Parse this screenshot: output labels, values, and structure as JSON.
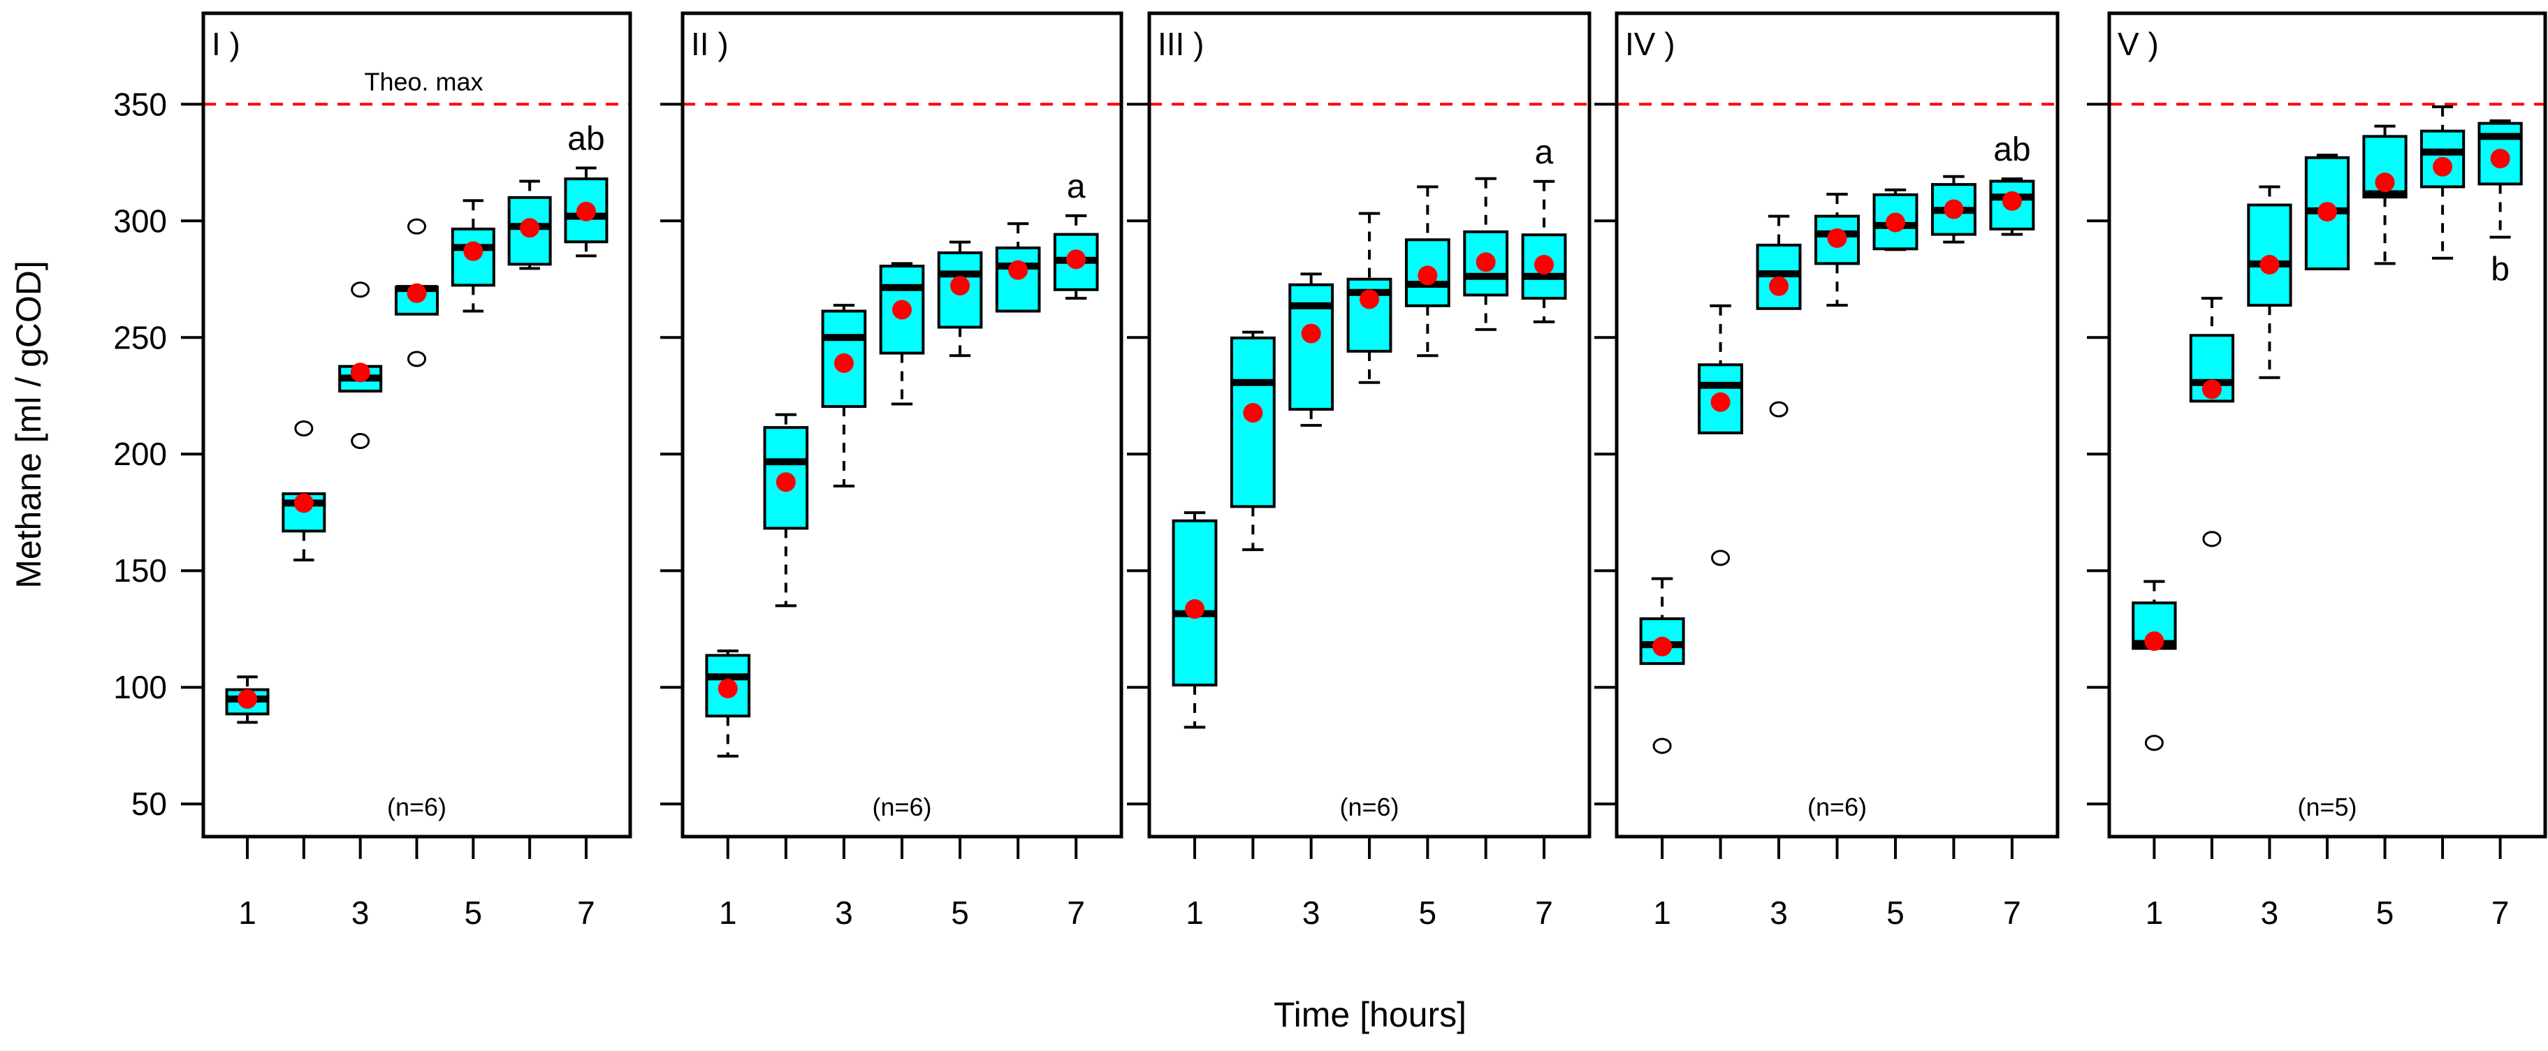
{
  "chart_data": {
    "type": "boxplot",
    "ylabel": "Methane [ml / gCOD]",
    "xlabel": "Time [hours]",
    "ylim": [
      36,
      389
    ],
    "yticks": [
      50,
      100,
      150,
      200,
      250,
      300,
      350
    ],
    "xticks": [
      1,
      2,
      3,
      4,
      5,
      6,
      7
    ],
    "xtick_labels": [
      "1",
      "",
      "3",
      "",
      "5",
      "",
      "7"
    ],
    "reference_line": {
      "value": 350,
      "label": "Theo. max",
      "color": "#FF0000",
      "style": "dashed"
    },
    "colors": {
      "box_fill": "#00FFFF",
      "mean_marker": "#FF0000",
      "outline": "#000000"
    },
    "stats_order": [
      "whisker_low",
      "q1",
      "median",
      "q3",
      "whisker_high"
    ],
    "panels": [
      {
        "label": "I )",
        "n_label": "(n=6)",
        "show_ref_label": true,
        "letter": {
          "text": "ab",
          "x": 7,
          "position": "above"
        },
        "boxes": [
          {
            "x": 1,
            "stats": [
              85,
              88.6,
              95,
              99,
              104.5
            ],
            "mean": 95,
            "outliers": []
          },
          {
            "x": 2,
            "stats": [
              154.6,
              167,
              179,
              183,
              183
            ],
            "mean": 179,
            "outliers": [
              211
            ]
          },
          {
            "x": 3,
            "stats": [
              227,
              227,
              232.6,
              237.6,
              237.6
            ],
            "mean": 235,
            "outliers": [
              270.5,
              205.6
            ]
          },
          {
            "x": 4,
            "stats": [
              260,
              260,
              271,
              271.6,
              271.6
            ],
            "mean": 269,
            "outliers": [
              297.6,
              240.8
            ]
          },
          {
            "x": 5,
            "stats": [
              261.3,
              272.4,
              288.6,
              296.5,
              308.7
            ],
            "mean": 287,
            "outliers": []
          },
          {
            "x": 6,
            "stats": [
              279.6,
              281.4,
              297.6,
              310,
              317
            ],
            "mean": 297,
            "outliers": []
          },
          {
            "x": 7,
            "stats": [
              285,
              291,
              302,
              318,
              322.7
            ],
            "mean": 304,
            "outliers": []
          }
        ]
      },
      {
        "label": "II )",
        "n_label": "(n=6)",
        "show_ref_label": false,
        "letter": {
          "text": "a",
          "x": 7,
          "position": "above"
        },
        "boxes": [
          {
            "x": 1,
            "stats": [
              70.5,
              87.7,
              104.5,
              113.7,
              115.6
            ],
            "mean": 99.5,
            "outliers": []
          },
          {
            "x": 2,
            "stats": [
              135,
              168.2,
              196.7,
              211.4,
              216.9
            ],
            "mean": 188,
            "outliers": []
          },
          {
            "x": 3,
            "stats": [
              186.3,
              220.4,
              250,
              261.3,
              263.8
            ],
            "mean": 239,
            "outliers": []
          },
          {
            "x": 4,
            "stats": [
              221.5,
              243.3,
              271.4,
              280.6,
              281.7
            ],
            "mean": 261.9,
            "outliers": []
          },
          {
            "x": 5,
            "stats": [
              242.2,
              254.4,
              277.2,
              286.3,
              290.9
            ],
            "mean": 272.2,
            "outliers": []
          },
          {
            "x": 6,
            "stats": [
              261.3,
              261.3,
              280.6,
              288.4,
              298.8
            ],
            "mean": 278.9,
            "outliers": []
          },
          {
            "x": 7,
            "stats": [
              266.8,
              270.5,
              283.1,
              294.2,
              302.2
            ],
            "mean": 283.5,
            "outliers": []
          }
        ]
      },
      {
        "label": "III )",
        "n_label": "(n=6)",
        "show_ref_label": false,
        "letter": {
          "text": "a",
          "x": 7,
          "position": "above"
        },
        "boxes": [
          {
            "x": 1,
            "stats": [
              82.9,
              101,
              131.6,
              171.4,
              174.9
            ],
            "mean": 133.6,
            "outliers": []
          },
          {
            "x": 2,
            "stats": [
              159,
              177.5,
              230.7,
              249.8,
              252.3
            ],
            "mean": 217.7,
            "outliers": []
          },
          {
            "x": 3,
            "stats": [
              212.3,
              219.2,
              263.6,
              272.6,
              277.2
            ],
            "mean": 251.7,
            "outliers": []
          },
          {
            "x": 4,
            "stats": [
              230.7,
              244.1,
              269.3,
              275,
              303.2
            ],
            "mean": 266.4,
            "outliers": []
          },
          {
            "x": 5,
            "stats": [
              242.2,
              263.6,
              272.8,
              291.9,
              314.6
            ],
            "mean": 276.6,
            "outliers": []
          },
          {
            "x": 6,
            "stats": [
              253.4,
              268.2,
              276.2,
              295.3,
              318.1
            ],
            "mean": 282.3,
            "outliers": []
          },
          {
            "x": 7,
            "stats": [
              256.7,
              266.8,
              276.2,
              294,
              316.9
            ],
            "mean": 281.2,
            "outliers": []
          }
        ]
      },
      {
        "label": "IV )",
        "n_label": "(n=6)",
        "show_ref_label": false,
        "letter": {
          "text": "ab",
          "x": 7,
          "position": "above"
        },
        "boxes": [
          {
            "x": 1,
            "stats": [
              110.2,
              110.2,
              118.3,
              129.4,
              146.6
            ],
            "mean": 117.5,
            "outliers": [
              74.9
            ]
          },
          {
            "x": 2,
            "stats": [
              209.1,
              209.1,
              229.5,
              238.3,
              263.6
            ],
            "mean": 222.3,
            "outliers": [
              155.5
            ]
          },
          {
            "x": 3,
            "stats": [
              262.4,
              262.4,
              277.3,
              289.6,
              302
            ],
            "mean": 272,
            "outliers": [
              219.2
            ]
          },
          {
            "x": 4,
            "stats": [
              263.8,
              281.7,
              294.4,
              302,
              311.4
            ],
            "mean": 292.6,
            "outliers": []
          },
          {
            "x": 5,
            "stats": [
              287.7,
              288,
              298,
              311.2,
              313.3
            ],
            "mean": 299.3,
            "outliers": []
          },
          {
            "x": 6,
            "stats": [
              290.9,
              294.2,
              304.5,
              315.6,
              319
            ],
            "mean": 305,
            "outliers": []
          },
          {
            "x": 7,
            "stats": [
              294.2,
              296.5,
              310.2,
              317,
              318
            ],
            "mean": 308.5,
            "outliers": []
          }
        ]
      },
      {
        "label": "V )",
        "n_label": "(n=5)",
        "show_ref_label": false,
        "letter": {
          "text": "b",
          "x": 7,
          "position": "below"
        },
        "boxes": [
          {
            "x": 1,
            "stats": [
              116.7,
              116.7,
              118.8,
              136.2,
              145.4
            ],
            "mean": 119.8,
            "outliers": [
              76.2
            ]
          },
          {
            "x": 2,
            "stats": [
              222.7,
              222.7,
              230.7,
              250.9,
              266.8
            ],
            "mean": 227.8,
            "outliers": [
              163.6
            ]
          },
          {
            "x": 3,
            "stats": [
              232.8,
              263.8,
              281.5,
              306.8,
              314.6
            ],
            "mean": 281.2,
            "outliers": []
          },
          {
            "x": 4,
            "stats": [
              279.4,
              279.4,
              304.3,
              327.1,
              328.2
            ],
            "mean": 303.9,
            "outliers": []
          },
          {
            "x": 5,
            "stats": [
              281.7,
              310.2,
              311.6,
              336.2,
              340.6
            ],
            "mean": 316.5,
            "outliers": []
          },
          {
            "x": 6,
            "stats": [
              284,
              314.6,
              329.5,
              338.5,
              348.9
            ],
            "mean": 323.2,
            "outliers": []
          },
          {
            "x": 7,
            "stats": [
              293,
              315.8,
              336.2,
              341.8,
              342.9
            ],
            "mean": 326.7,
            "outliers": []
          }
        ]
      }
    ]
  }
}
